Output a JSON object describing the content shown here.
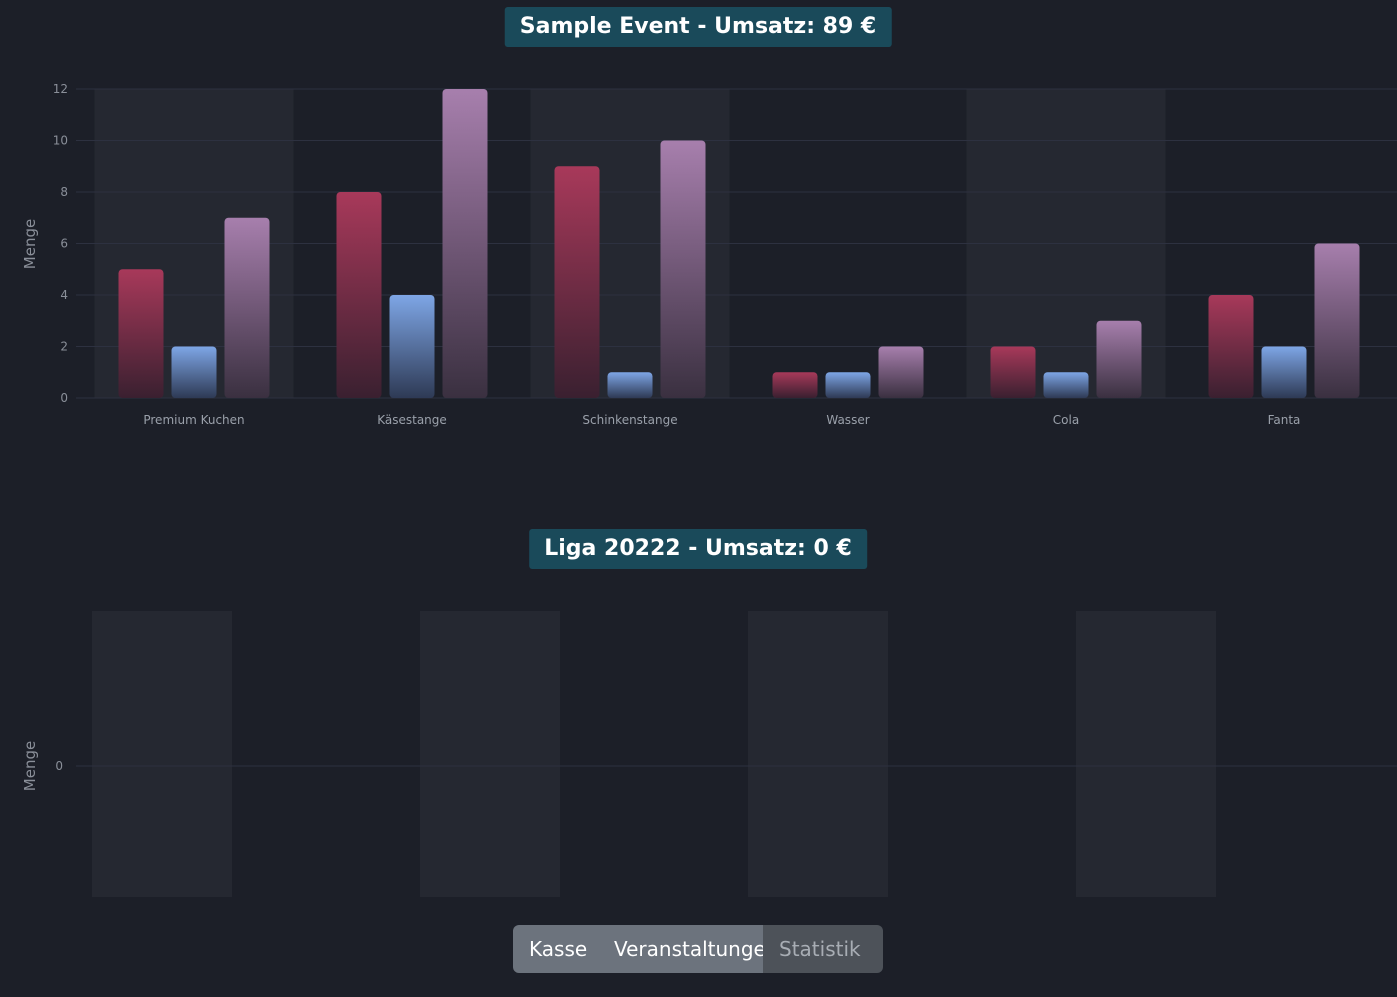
{
  "charts": [
    {
      "title": "Sample Event - Umsatz: 89 €"
    },
    {
      "title": "Liga 20222 - Umsatz: 0 €"
    }
  ],
  "nav": {
    "kasse": "Kasse",
    "veranstaltungen": "Veranstaltungen",
    "statistik": "Statistik"
  },
  "colors": {
    "background": "#1c1f28",
    "badge": "#1a4a5a",
    "series_red": "#a8395a",
    "series_blue": "#7ea6e6",
    "series_purple": "#a77fad"
  },
  "chart_data": [
    {
      "type": "bar",
      "title": "Sample Event - Umsatz: 89 €",
      "ylabel": "Menge",
      "xlabel": "",
      "ylim": [
        0,
        12
      ],
      "yticks": [
        0,
        2,
        4,
        6,
        8,
        10,
        12
      ],
      "categories": [
        "Premium Kuchen",
        "Käsestange",
        "Schinkenstange",
        "Wasser",
        "Cola",
        "Fanta"
      ],
      "series": [
        {
          "values": [
            5,
            8,
            9,
            1,
            2,
            4
          ],
          "color": "#a8395a"
        },
        {
          "values": [
            2,
            4,
            1,
            1,
            1,
            2
          ],
          "color": "#7ea6e6"
        },
        {
          "values": [
            7,
            12,
            10,
            2,
            3,
            6
          ],
          "color": "#a77fad"
        }
      ],
      "grid": true
    },
    {
      "type": "bar",
      "title": "Liga 20222 - Umsatz: 0 €",
      "ylabel": "Menge",
      "xlabel": "",
      "yticks": [
        0
      ],
      "categories": [],
      "series": [],
      "grid": true
    }
  ]
}
